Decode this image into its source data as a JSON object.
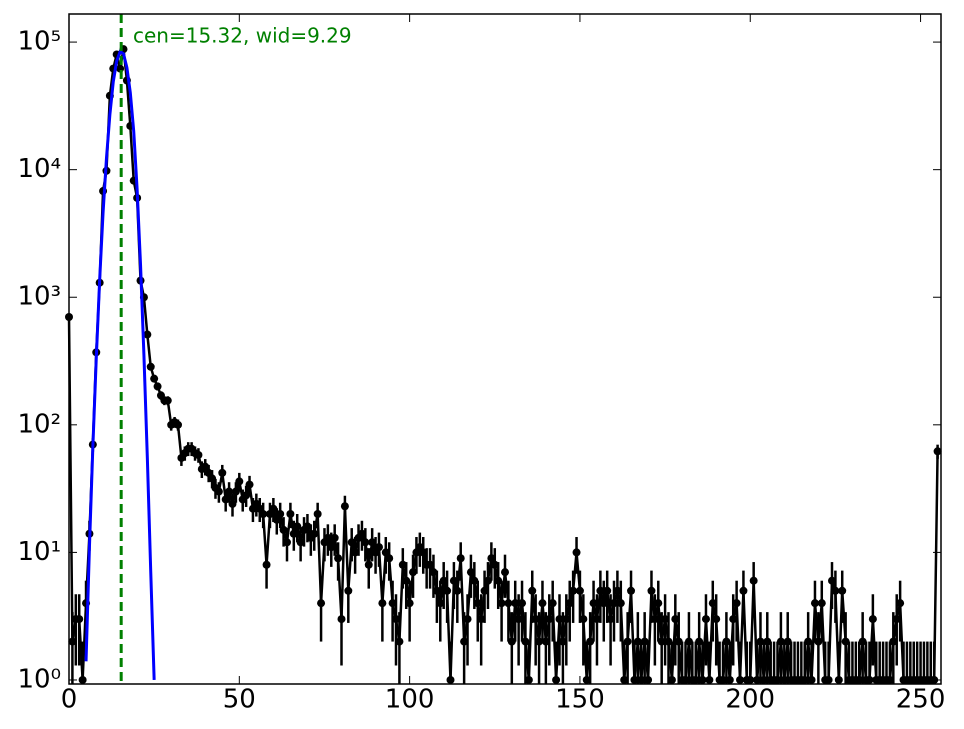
{
  "chart_data": {
    "type": "errorbar",
    "annotation": "cen=15.32, wid=9.29",
    "vline": 15.32,
    "vline_color": "#008000",
    "color": "#000000",
    "log_y": true,
    "xlim": [
      0,
      256
    ],
    "ylim": [
      0.93,
      166000
    ],
    "xticks": [
      0,
      50,
      100,
      150,
      200,
      250
    ],
    "yticks": [
      {
        "value": 1,
        "label": "10⁰"
      },
      {
        "value": 10,
        "label": "10¹"
      },
      {
        "value": 100,
        "label": "10²"
      },
      {
        "value": 1000,
        "label": "10³"
      },
      {
        "value": 10000,
        "label": "10⁴"
      },
      {
        "value": 100000,
        "label": "10⁵"
      }
    ],
    "x": [
      0,
      1,
      2,
      3,
      4,
      5,
      6,
      7,
      8,
      9,
      10,
      11,
      12,
      13,
      14,
      15,
      16,
      17,
      18,
      19,
      20,
      21,
      22,
      23,
      24,
      25,
      26,
      27,
      28,
      29,
      30,
      31,
      32,
      33,
      34,
      35,
      36,
      37,
      38,
      39,
      40,
      41,
      42,
      43,
      44,
      45,
      46,
      47,
      48,
      49,
      50,
      51,
      52,
      53,
      54,
      55,
      56,
      57,
      58,
      59,
      60,
      61,
      62,
      63,
      64,
      65,
      66,
      67,
      68,
      69,
      70,
      71,
      72,
      73,
      74,
      75,
      76,
      77,
      78,
      79,
      80,
      81,
      82,
      83,
      84,
      85,
      86,
      87,
      88,
      89,
      90,
      91,
      92,
      93,
      94,
      95,
      96,
      97,
      98,
      99,
      100,
      101,
      102,
      103,
      104,
      105,
      106,
      107,
      108,
      109,
      110,
      111,
      112,
      113,
      114,
      115,
      116,
      117,
      118,
      119,
      120,
      121,
      122,
      123,
      124,
      125,
      126,
      127,
      128,
      129,
      130,
      131,
      132,
      133,
      134,
      135,
      136,
      137,
      138,
      139,
      140,
      141,
      142,
      143,
      144,
      145,
      146,
      147,
      148,
      149,
      150,
      151,
      152,
      153,
      154,
      155,
      156,
      157,
      158,
      159,
      160,
      161,
      162,
      163,
      164,
      165,
      166,
      167,
      168,
      169,
      170,
      171,
      172,
      173,
      174,
      175,
      176,
      177,
      178,
      179,
      180,
      181,
      182,
      183,
      184,
      185,
      186,
      187,
      188,
      189,
      190,
      191,
      192,
      193,
      194,
      195,
      196,
      197,
      198,
      199,
      200,
      201,
      202,
      203,
      204,
      205,
      206,
      207,
      208,
      209,
      210,
      211,
      212,
      213,
      214,
      215,
      216,
      217,
      218,
      219,
      220,
      221,
      222,
      223,
      224,
      225,
      226,
      227,
      228,
      229,
      230,
      231,
      232,
      233,
      234,
      235,
      236,
      237,
      238,
      239,
      240,
      241,
      242,
      243,
      244,
      245,
      246,
      247,
      248,
      249,
      250,
      251,
      252,
      253,
      254,
      255
    ],
    "values": [
      700,
      2,
      3,
      3,
      1,
      4,
      14,
      70,
      370,
      1300,
      6800,
      9800,
      38000,
      62000,
      80000,
      62000,
      88000,
      50000,
      22000,
      8200,
      6000,
      1350,
      1000,
      510,
      285,
      230,
      200,
      170,
      155,
      155,
      100,
      105,
      100,
      55,
      60,
      65,
      65,
      60,
      58,
      45,
      47,
      42,
      38,
      32,
      30,
      42,
      26,
      30,
      24,
      30,
      36,
      26,
      28,
      34,
      22,
      24,
      22,
      20,
      8,
      20,
      22,
      18,
      20,
      15,
      12,
      20,
      14,
      16,
      12,
      15,
      16,
      13,
      14,
      20,
      4,
      12,
      13,
      11,
      13,
      9,
      3,
      23,
      5,
      12,
      10,
      13,
      14,
      12,
      8,
      12,
      10,
      11,
      4,
      10,
      9,
      4,
      3,
      2,
      8,
      6,
      4,
      7,
      10,
      11,
      10,
      8,
      8,
      7,
      5,
      4,
      6,
      5,
      1,
      6,
      5,
      9,
      2,
      3,
      7,
      6,
      4,
      3,
      5,
      6,
      9,
      8,
      6,
      4,
      7,
      4,
      2,
      4,
      3,
      4,
      2,
      1,
      5,
      3,
      2,
      4,
      2,
      3,
      4,
      1,
      3,
      2,
      3,
      4,
      5,
      10,
      5,
      3,
      1,
      2,
      4,
      3,
      5,
      4,
      5,
      3,
      4,
      5,
      4,
      1,
      2,
      5,
      1,
      2,
      1,
      2,
      1,
      5,
      3,
      4,
      2,
      3,
      2,
      1,
      3,
      2,
      1,
      1,
      2,
      1,
      1,
      2,
      1,
      3,
      1,
      4,
      3,
      1,
      1,
      2,
      1,
      3,
      4,
      1,
      5,
      1,
      1,
      6,
      1,
      2,
      1,
      2,
      1,
      1,
      1,
      2,
      1,
      2,
      1,
      1,
      1,
      1,
      1,
      2,
      1,
      4,
      2,
      4,
      1,
      1,
      6,
      5,
      1,
      5,
      2,
      1,
      1,
      1,
      1,
      2,
      1,
      1,
      3,
      1,
      1,
      1,
      1,
      1,
      2,
      3,
      4,
      1,
      1,
      1,
      1,
      1,
      1,
      1,
      1,
      1,
      1,
      62
    ],
    "errors": [
      26.5,
      1.4,
      1.7,
      1.7,
      1,
      2,
      3.7,
      8.4,
      19.2,
      36.1,
      82.5,
      99,
      195,
      249,
      283,
      249,
      297,
      224,
      148,
      90.6,
      77.5,
      36.7,
      31.6,
      22.6,
      16.9,
      15.2,
      14.1,
      13,
      12.4,
      12.4,
      10,
      10.2,
      10,
      7.4,
      7.7,
      8.1,
      8.1,
      7.7,
      7.6,
      6.7,
      6.9,
      6.5,
      6.2,
      5.7,
      5.5,
      6.5,
      5.1,
      5.5,
      4.9,
      5.5,
      6,
      5.1,
      5.3,
      5.8,
      4.7,
      4.9,
      4.7,
      4.5,
      2.8,
      4.5,
      4.7,
      4.2,
      4.5,
      3.9,
      3.5,
      4.5,
      3.7,
      4,
      3.5,
      3.9,
      4,
      3.6,
      3.7,
      4.5,
      2,
      3.5,
      3.6,
      3.3,
      3.6,
      3,
      1.7,
      4.8,
      2.2,
      3.5,
      3.2,
      3.6,
      3.7,
      3.5,
      2.8,
      3.5,
      3.2,
      3.3,
      2,
      3.2,
      3,
      2,
      1.7,
      1.4,
      2.8,
      2.4,
      2,
      2.6,
      3.2,
      3.3,
      3.2,
      2.8,
      2.8,
      2.6,
      2.2,
      2,
      2.4,
      2.2,
      1,
      2.4,
      2.2,
      3,
      1.4,
      1.7,
      2.6,
      2.4,
      2,
      1.7,
      2.2,
      2.4,
      3,
      2.8,
      2.4,
      2,
      2.6,
      2,
      1.4,
      2,
      1.7,
      2,
      1.4,
      1,
      2.2,
      1.7,
      1.4,
      2,
      1.4,
      1.7,
      2,
      1,
      1.7,
      1.4,
      1.7,
      2,
      2.2,
      3.2,
      2.2,
      1.7,
      1,
      1.4,
      2,
      1.7,
      2.2,
      2,
      2.2,
      1.7,
      2,
      2.2,
      2,
      1,
      1.4,
      2.2,
      1,
      1.4,
      1,
      1.4,
      1,
      2.2,
      1.7,
      2,
      1.4,
      1.7,
      1.4,
      1,
      1.7,
      1.4,
      1,
      1,
      1.4,
      1,
      1,
      1.4,
      1,
      1.7,
      1,
      2,
      1.7,
      1,
      1,
      1.4,
      1,
      1.7,
      2,
      1,
      2.2,
      1,
      1,
      2.4,
      1,
      1.4,
      1,
      1.4,
      1,
      1,
      1,
      1.4,
      1,
      1.4,
      1,
      1,
      1,
      1,
      1,
      1.4,
      1,
      2,
      1.4,
      2,
      1,
      1,
      2.4,
      2.2,
      1,
      2.2,
      1.4,
      1,
      1,
      1,
      1,
      1.4,
      1,
      1,
      1.7,
      1,
      1,
      1,
      1,
      1,
      1.4,
      1.7,
      2,
      1,
      1,
      1,
      1,
      1,
      1,
      1,
      1,
      1,
      1,
      7.9
    ],
    "fit": {
      "color": "#0000ff",
      "x": [
        5,
        6,
        7,
        8,
        9,
        10,
        11,
        12,
        13,
        14,
        15,
        16,
        17,
        18,
        19,
        20,
        21,
        22,
        23,
        24,
        25
      ],
      "y": [
        1.4,
        11,
        67,
        330,
        1370,
        4600,
        12300,
        27000,
        49000,
        71000,
        84000,
        81000,
        63000,
        40000,
        20000,
        7000,
        1800,
        350,
        55,
        7,
        1
      ]
    }
  }
}
